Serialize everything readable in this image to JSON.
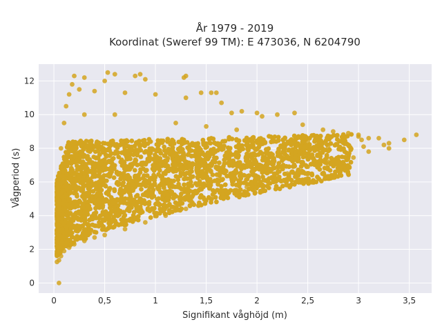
{
  "chart_data": {
    "type": "scatter",
    "title_line1": "År 1979 - 2019",
    "title_line2": "Koordinat (Sweref 99 TM): E 473036, N 6204790",
    "xlabel": "Signifikant våghöjd (m)",
    "ylabel": "Vågperiod (s)",
    "xlim": [
      -0.15,
      3.72
    ],
    "ylim": [
      -0.6,
      13.0
    ],
    "x_ticks": [
      0,
      0.5,
      1,
      1.5,
      2,
      2.5,
      3,
      3.5
    ],
    "x_tick_labels": [
      "0",
      "0,5",
      "1",
      "1,5",
      "2",
      "2,5",
      "3",
      "3,5"
    ],
    "y_ticks": [
      0,
      2,
      4,
      6,
      8,
      10,
      12
    ],
    "y_tick_labels": [
      "0",
      "2",
      "4",
      "6",
      "8",
      "10",
      "12"
    ],
    "grid": true,
    "marker_color": "#D4A520",
    "background_color": "#E8E8F0",
    "points": [
      [
        0.05,
        0.0
      ],
      [
        0.03,
        1.25
      ],
      [
        0.05,
        1.35
      ],
      [
        0.07,
        1.6
      ],
      [
        0.1,
        1.9
      ],
      [
        0.15,
        2.1
      ],
      [
        0.2,
        2.3
      ],
      [
        0.3,
        2.5
      ],
      [
        0.4,
        2.7
      ],
      [
        0.5,
        2.85
      ],
      [
        0.7,
        3.2
      ],
      [
        0.9,
        3.6
      ],
      [
        1.1,
        4.0
      ],
      [
        1.3,
        4.4
      ],
      [
        1.5,
        4.9
      ],
      [
        1.7,
        5.3
      ],
      [
        1.9,
        5.7
      ],
      [
        2.1,
        6.1
      ],
      [
        2.3,
        6.5
      ],
      [
        2.5,
        6.9
      ],
      [
        2.7,
        7.2
      ],
      [
        2.9,
        7.5
      ],
      [
        3.1,
        7.8
      ],
      [
        3.3,
        8.0
      ],
      [
        3.45,
        8.5
      ],
      [
        3.57,
        8.8
      ],
      [
        0.05,
        6.2
      ],
      [
        0.07,
        8.0
      ],
      [
        0.1,
        9.5
      ],
      [
        0.12,
        10.5
      ],
      [
        0.15,
        11.2
      ],
      [
        0.18,
        11.8
      ],
      [
        0.2,
        12.3
      ],
      [
        0.3,
        12.2
      ],
      [
        0.5,
        12.0
      ],
      [
        0.53,
        12.5
      ],
      [
        0.6,
        12.4
      ],
      [
        0.8,
        12.3
      ],
      [
        0.85,
        12.4
      ],
      [
        0.9,
        12.1
      ],
      [
        1.3,
        12.3
      ],
      [
        1.28,
        12.2
      ],
      [
        1.45,
        11.3
      ],
      [
        1.55,
        11.3
      ],
      [
        1.6,
        11.3
      ],
      [
        1.3,
        11.0
      ],
      [
        1.0,
        11.2
      ],
      [
        0.7,
        11.3
      ],
      [
        0.4,
        11.4
      ],
      [
        0.25,
        11.5
      ],
      [
        1.65,
        10.7
      ],
      [
        1.75,
        10.1
      ],
      [
        1.85,
        10.2
      ],
      [
        2.0,
        10.1
      ],
      [
        2.05,
        9.9
      ],
      [
        2.2,
        10.0
      ],
      [
        2.37,
        10.1
      ],
      [
        2.45,
        9.4
      ],
      [
        2.65,
        9.1
      ],
      [
        2.75,
        9.0
      ],
      [
        2.9,
        8.9
      ],
      [
        3.0,
        8.7
      ],
      [
        3.03,
        8.5
      ],
      [
        3.1,
        8.6
      ],
      [
        3.2,
        8.6
      ],
      [
        3.25,
        8.2
      ],
      [
        3.3,
        8.3
      ],
      [
        3.0,
        8.8
      ],
      [
        2.85,
        8.5
      ],
      [
        2.95,
        7.45
      ],
      [
        3.05,
        8.1
      ],
      [
        2.7,
        8.1
      ],
      [
        2.6,
        8.2
      ],
      [
        2.5,
        8.4
      ],
      [
        0.3,
        10.0
      ],
      [
        0.6,
        10.0
      ],
      [
        1.2,
        9.5
      ],
      [
        1.5,
        9.3
      ],
      [
        1.8,
        9.1
      ]
    ]
  }
}
